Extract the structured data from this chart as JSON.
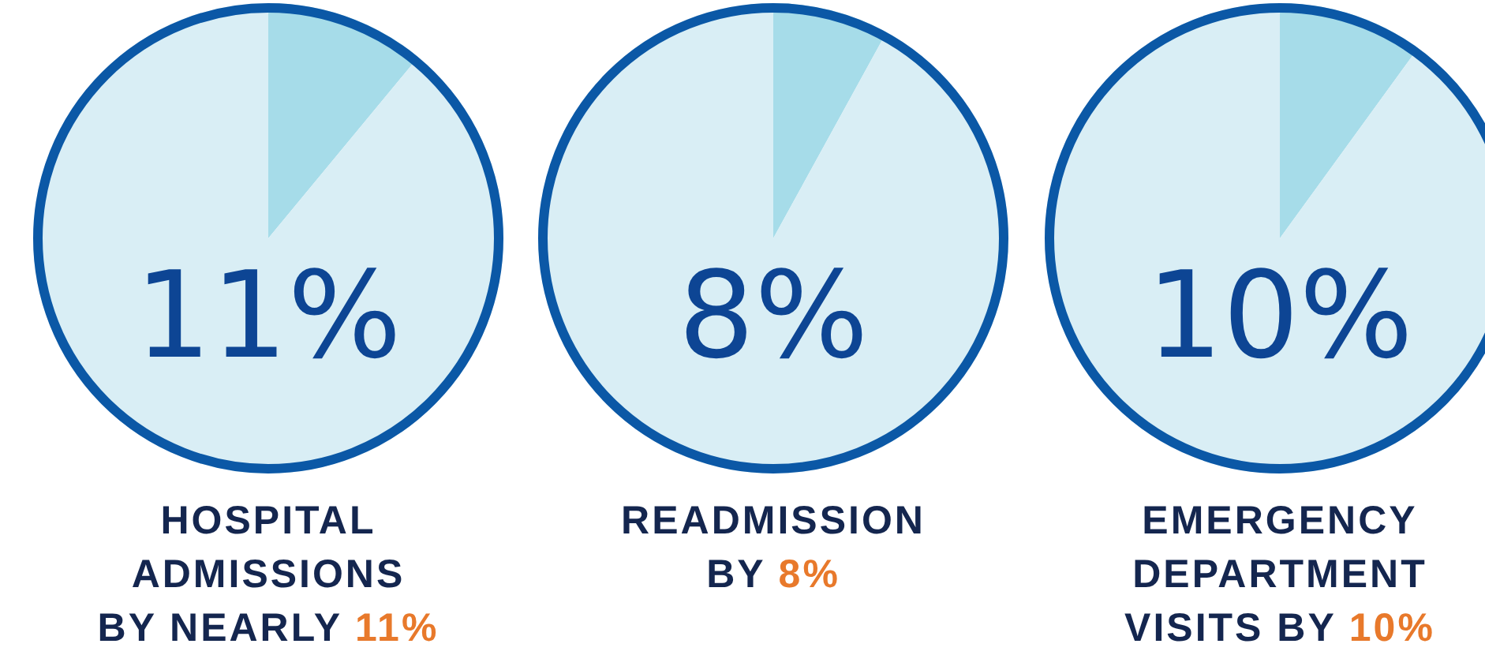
{
  "chart_data": [
    {
      "type": "pie",
      "title": "HOSPITAL\nADMISSIONS\nBY NEARLY 11%",
      "categories": [
        null,
        null
      ],
      "values": [
        11,
        89
      ],
      "colors": [
        "#a6dce9",
        "#d9eef5"
      ],
      "annotations": [
        "11%"
      ]
    },
    {
      "type": "pie",
      "title": "READMISSION\nBY 8%",
      "categories": [
        null,
        null
      ],
      "values": [
        8,
        92
      ],
      "colors": [
        "#a6dce9",
        "#d9eef5"
      ],
      "annotations": [
        "8%"
      ]
    },
    {
      "type": "pie",
      "title": "EMERGENCY\nDEPARTMENT\nVISITS BY 10%",
      "categories": [
        null,
        null
      ],
      "values": [
        10,
        90
      ],
      "colors": [
        "#a6dce9",
        "#d9eef5"
      ],
      "annotations": [
        "10%"
      ]
    }
  ]
}
